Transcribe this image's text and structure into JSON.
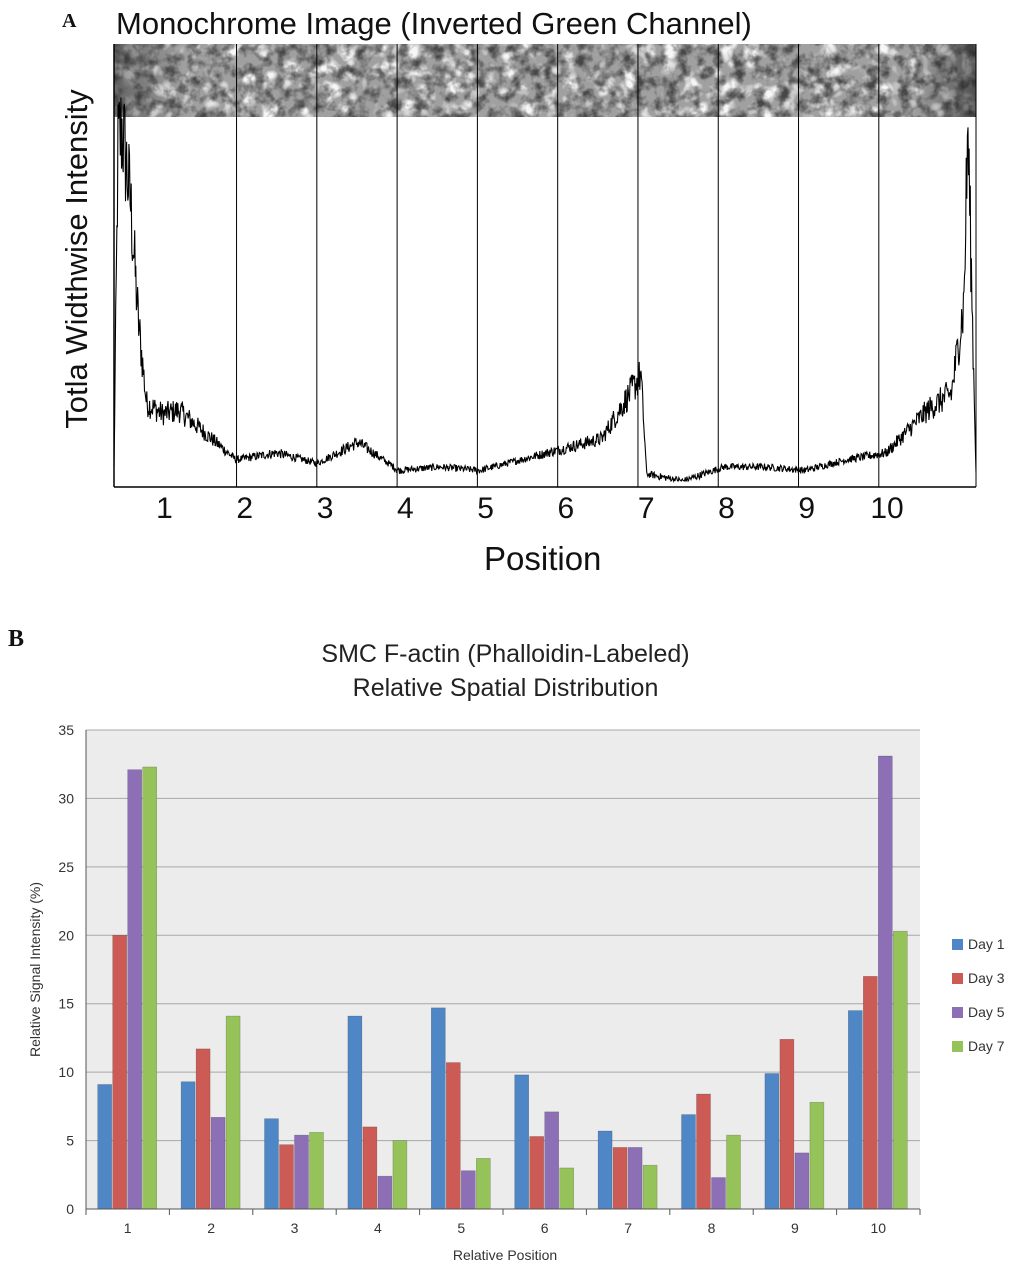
{
  "panelA": {
    "letter": "A",
    "title": "Monochrome Image (Inverted Green Channel)",
    "ylabel": "Totla Widthwise Intensity",
    "xlabel": "Position",
    "positions": [
      "1",
      "2",
      "3",
      "4",
      "5",
      "6",
      "7",
      "8",
      "9",
      "10"
    ]
  },
  "panelB": {
    "letter": "B",
    "title_line1": "SMC F-actin (Phalloidin-Labeled)",
    "title_line2": "Relative Spatial Distribution"
  },
  "colors": {
    "day1": "#4f86c6",
    "day3": "#cc5a55",
    "day5": "#8c6fb4",
    "day7": "#96c25a",
    "plot_bg": "#ececec",
    "grid": "#a8a8a8"
  },
  "chart_data": [
    {
      "type": "line",
      "title": "Monochrome Image (Inverted Green Channel)",
      "xlabel": "Position",
      "ylabel": "Totla Widthwise Intensity",
      "categories": [
        "1",
        "2",
        "3",
        "4",
        "5",
        "6",
        "7",
        "8",
        "9",
        "10"
      ],
      "profile": [
        {
          "x": 0.0,
          "y": 4
        },
        {
          "x": 0.05,
          "y": 95
        },
        {
          "x": 0.1,
          "y": 100
        },
        {
          "x": 0.2,
          "y": 80
        },
        {
          "x": 0.3,
          "y": 45
        },
        {
          "x": 0.4,
          "y": 22
        },
        {
          "x": 0.6,
          "y": 19
        },
        {
          "x": 0.8,
          "y": 20
        },
        {
          "x": 1.0,
          "y": 16
        },
        {
          "x": 1.5,
          "y": 6
        },
        {
          "x": 2.0,
          "y": 8
        },
        {
          "x": 2.5,
          "y": 5
        },
        {
          "x": 3.0,
          "y": 11
        },
        {
          "x": 3.5,
          "y": 3
        },
        {
          "x": 4.0,
          "y": 4
        },
        {
          "x": 4.5,
          "y": 3
        },
        {
          "x": 5.0,
          "y": 6
        },
        {
          "x": 5.5,
          "y": 9
        },
        {
          "x": 6.0,
          "y": 12
        },
        {
          "x": 6.48,
          "y": 30
        },
        {
          "x": 6.55,
          "y": 2
        },
        {
          "x": 7.0,
          "y": 0
        },
        {
          "x": 7.5,
          "y": 4
        },
        {
          "x": 8.0,
          "y": 4
        },
        {
          "x": 8.5,
          "y": 3
        },
        {
          "x": 9.0,
          "y": 6
        },
        {
          "x": 9.5,
          "y": 8
        },
        {
          "x": 10.0,
          "y": 20
        },
        {
          "x": 10.3,
          "y": 25
        },
        {
          "x": 10.45,
          "y": 50
        },
        {
          "x": 10.5,
          "y": 100
        },
        {
          "x": 10.6,
          "y": 3
        }
      ]
    },
    {
      "type": "bar",
      "title": "SMC F-actin (Phalloidin-Labeled) Relative Spatial Distribution",
      "xlabel": "Relative Position",
      "ylabel": "Relative Signal Intensity (%)",
      "ylim": [
        0,
        35
      ],
      "yticks": [
        "0",
        "5",
        "10",
        "15",
        "20",
        "25",
        "30",
        "35"
      ],
      "grid": true,
      "legend_position": "right",
      "categories": [
        "1",
        "2",
        "3",
        "4",
        "5",
        "6",
        "7",
        "8",
        "9",
        "10"
      ],
      "series": [
        {
          "name": "Day 1",
          "color": "#4f86c6",
          "values": [
            9.1,
            9.3,
            6.6,
            14.1,
            14.7,
            9.8,
            5.7,
            6.9,
            9.9,
            14.5
          ]
        },
        {
          "name": "Day 3",
          "color": "#cc5a55",
          "values": [
            20.0,
            11.7,
            4.7,
            6.0,
            10.7,
            5.3,
            4.5,
            8.4,
            12.4,
            17.0
          ]
        },
        {
          "name": "Day 5",
          "color": "#8c6fb4",
          "values": [
            32.1,
            6.7,
            5.4,
            2.4,
            2.8,
            7.1,
            4.5,
            2.3,
            4.1,
            33.1
          ]
        },
        {
          "name": "Day 7",
          "color": "#96c25a",
          "values": [
            32.3,
            14.1,
            5.6,
            5.0,
            3.7,
            3.0,
            3.2,
            5.4,
            7.8,
            20.3
          ]
        }
      ]
    }
  ]
}
